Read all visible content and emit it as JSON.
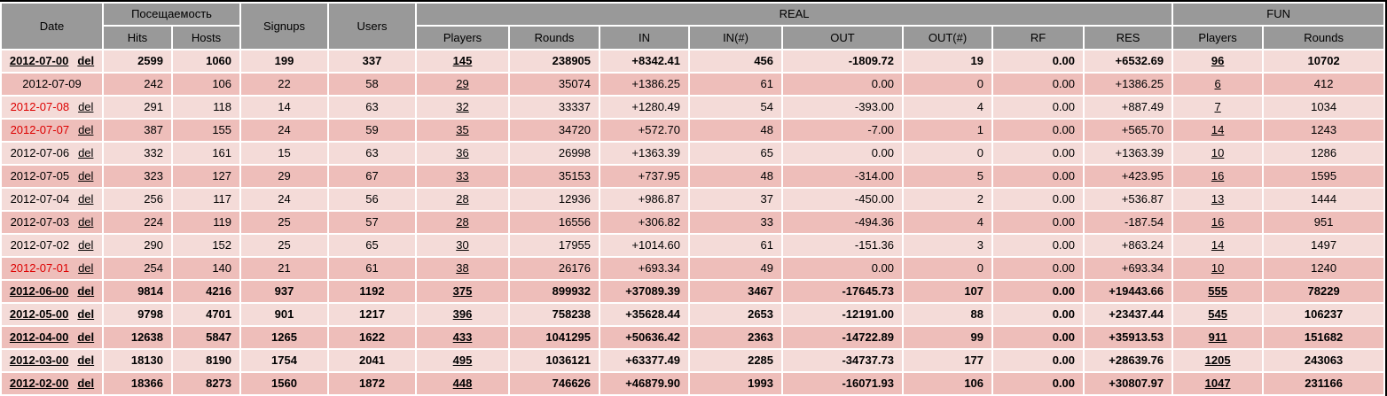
{
  "header": {
    "date": "Date",
    "visits": "Посещаемость",
    "hits": "Hits",
    "hosts": "Hosts",
    "signups": "Signups",
    "users": "Users",
    "real": "REAL",
    "fun": "FUN",
    "players": "Players",
    "rounds": "Rounds",
    "in": "IN",
    "in_n": "IN(#)",
    "out": "OUT",
    "out_n": "OUT(#)",
    "rf": "RF",
    "res": "RES"
  },
  "labels": {
    "del": "del"
  },
  "colors": {
    "header_bg": "#999999",
    "row_light": "#f4dbd8",
    "row_dark": "#eebeba",
    "weekend_date": "#dd0000",
    "grid_gap": "#ffffff",
    "outer_border": "#000000"
  },
  "rows": [
    {
      "date": "2012-07-00",
      "del": true,
      "weekend": false,
      "summary": true,
      "shade": "light",
      "hits": "2599",
      "hosts": "1060",
      "signups": "199",
      "users": "337",
      "players": "145",
      "rounds": "238905",
      "in": "+8342.41",
      "in_n": "456",
      "out": "-1809.72",
      "out_n": "19",
      "rf": "0.00",
      "res": "+6532.69",
      "fun_players": "96",
      "fun_rounds": "10702"
    },
    {
      "date": "2012-07-09",
      "del": false,
      "weekend": false,
      "summary": false,
      "shade": "dark",
      "hits": "242",
      "hosts": "106",
      "signups": "22",
      "users": "58",
      "players": "29",
      "rounds": "35074",
      "in": "+1386.25",
      "in_n": "61",
      "out": "0.00",
      "out_n": "0",
      "rf": "0.00",
      "res": "+1386.25",
      "fun_players": "6",
      "fun_rounds": "412"
    },
    {
      "date": "2012-07-08",
      "del": true,
      "weekend": true,
      "summary": false,
      "shade": "light",
      "hits": "291",
      "hosts": "118",
      "signups": "14",
      "users": "63",
      "players": "32",
      "rounds": "33337",
      "in": "+1280.49",
      "in_n": "54",
      "out": "-393.00",
      "out_n": "4",
      "rf": "0.00",
      "res": "+887.49",
      "fun_players": "7",
      "fun_rounds": "1034"
    },
    {
      "date": "2012-07-07",
      "del": true,
      "weekend": true,
      "summary": false,
      "shade": "dark",
      "hits": "387",
      "hosts": "155",
      "signups": "24",
      "users": "59",
      "players": "35",
      "rounds": "34720",
      "in": "+572.70",
      "in_n": "48",
      "out": "-7.00",
      "out_n": "1",
      "rf": "0.00",
      "res": "+565.70",
      "fun_players": "14",
      "fun_rounds": "1243"
    },
    {
      "date": "2012-07-06",
      "del": true,
      "weekend": false,
      "summary": false,
      "shade": "light",
      "hits": "332",
      "hosts": "161",
      "signups": "15",
      "users": "63",
      "players": "36",
      "rounds": "26998",
      "in": "+1363.39",
      "in_n": "65",
      "out": "0.00",
      "out_n": "0",
      "rf": "0.00",
      "res": "+1363.39",
      "fun_players": "10",
      "fun_rounds": "1286"
    },
    {
      "date": "2012-07-05",
      "del": true,
      "weekend": false,
      "summary": false,
      "shade": "dark",
      "hits": "323",
      "hosts": "127",
      "signups": "29",
      "users": "67",
      "players": "33",
      "rounds": "35153",
      "in": "+737.95",
      "in_n": "48",
      "out": "-314.00",
      "out_n": "5",
      "rf": "0.00",
      "res": "+423.95",
      "fun_players": "16",
      "fun_rounds": "1595"
    },
    {
      "date": "2012-07-04",
      "del": true,
      "weekend": false,
      "summary": false,
      "shade": "light",
      "hits": "256",
      "hosts": "117",
      "signups": "24",
      "users": "56",
      "players": "28",
      "rounds": "12936",
      "in": "+986.87",
      "in_n": "37",
      "out": "-450.00",
      "out_n": "2",
      "rf": "0.00",
      "res": "+536.87",
      "fun_players": "13",
      "fun_rounds": "1444"
    },
    {
      "date": "2012-07-03",
      "del": true,
      "weekend": false,
      "summary": false,
      "shade": "dark",
      "hits": "224",
      "hosts": "119",
      "signups": "25",
      "users": "57",
      "players": "28",
      "rounds": "16556",
      "in": "+306.82",
      "in_n": "33",
      "out": "-494.36",
      "out_n": "4",
      "rf": "0.00",
      "res": "-187.54",
      "fun_players": "16",
      "fun_rounds": "951"
    },
    {
      "date": "2012-07-02",
      "del": true,
      "weekend": false,
      "summary": false,
      "shade": "light",
      "hits": "290",
      "hosts": "152",
      "signups": "25",
      "users": "65",
      "players": "30",
      "rounds": "17955",
      "in": "+1014.60",
      "in_n": "61",
      "out": "-151.36",
      "out_n": "3",
      "rf": "0.00",
      "res": "+863.24",
      "fun_players": "14",
      "fun_rounds": "1497"
    },
    {
      "date": "2012-07-01",
      "del": true,
      "weekend": true,
      "summary": false,
      "shade": "dark",
      "hits": "254",
      "hosts": "140",
      "signups": "21",
      "users": "61",
      "players": "38",
      "rounds": "26176",
      "in": "+693.34",
      "in_n": "49",
      "out": "0.00",
      "out_n": "0",
      "rf": "0.00",
      "res": "+693.34",
      "fun_players": "10",
      "fun_rounds": "1240"
    },
    {
      "date": "2012-06-00",
      "del": true,
      "weekend": false,
      "summary": true,
      "shade": "dark",
      "hits": "9814",
      "hosts": "4216",
      "signups": "937",
      "users": "1192",
      "players": "375",
      "rounds": "899932",
      "in": "+37089.39",
      "in_n": "3467",
      "out": "-17645.73",
      "out_n": "107",
      "rf": "0.00",
      "res": "+19443.66",
      "fun_players": "555",
      "fun_rounds": "78229"
    },
    {
      "date": "2012-05-00",
      "del": true,
      "weekend": false,
      "summary": true,
      "shade": "light",
      "hits": "9798",
      "hosts": "4701",
      "signups": "901",
      "users": "1217",
      "players": "396",
      "rounds": "758238",
      "in": "+35628.44",
      "in_n": "2653",
      "out": "-12191.00",
      "out_n": "88",
      "rf": "0.00",
      "res": "+23437.44",
      "fun_players": "545",
      "fun_rounds": "106237"
    },
    {
      "date": "2012-04-00",
      "del": true,
      "weekend": false,
      "summary": true,
      "shade": "dark",
      "hits": "12638",
      "hosts": "5847",
      "signups": "1265",
      "users": "1622",
      "players": "433",
      "rounds": "1041295",
      "in": "+50636.42",
      "in_n": "2363",
      "out": "-14722.89",
      "out_n": "99",
      "rf": "0.00",
      "res": "+35913.53",
      "fun_players": "911",
      "fun_rounds": "151682"
    },
    {
      "date": "2012-03-00",
      "del": true,
      "weekend": false,
      "summary": true,
      "shade": "light",
      "hits": "18130",
      "hosts": "8190",
      "signups": "1754",
      "users": "2041",
      "players": "495",
      "rounds": "1036121",
      "in": "+63377.49",
      "in_n": "2285",
      "out": "-34737.73",
      "out_n": "177",
      "rf": "0.00",
      "res": "+28639.76",
      "fun_players": "1205",
      "fun_rounds": "243063"
    },
    {
      "date": "2012-02-00",
      "del": true,
      "weekend": false,
      "summary": true,
      "shade": "dark",
      "hits": "18366",
      "hosts": "8273",
      "signups": "1560",
      "users": "1872",
      "players": "448",
      "rounds": "746626",
      "in": "+46879.90",
      "in_n": "1993",
      "out": "-16071.93",
      "out_n": "106",
      "rf": "0.00",
      "res": "+30807.97",
      "fun_players": "1047",
      "fun_rounds": "231166"
    }
  ]
}
